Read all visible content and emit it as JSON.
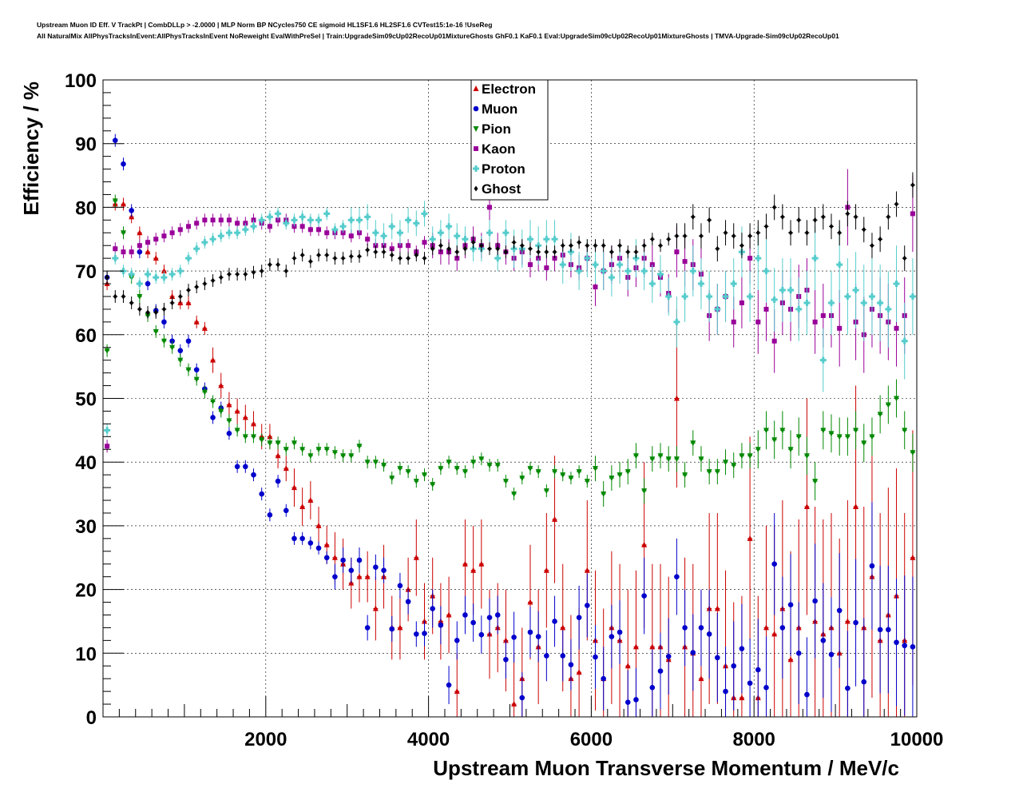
{
  "header": {
    "line1": "Upstream Muon ID Eff. V TrackPt | CombDLLp > -2.0000 | MLP Norm BP NCycles750 CE sigmoid HL1SF1.6 HL2SF1.6 CVTest15:1e-16 !UseReg",
    "line2": "All NaturalMix AllPhysTracksInEvent:AllPhysTracksInEvent NoReweight EvalWithPreSel | Train:UpgradeSim09cUp02RecoUp01MixtureGhosts GhF0.1 KaF0.1 Eval:UpgradeSim09cUp02RecoUp01MixtureGhosts | TMVA-Upgrade-Sim09cUp02RecoUp01"
  },
  "chart_data": {
    "type": "scatter",
    "xlabel": "Upstream Muon Transverse Momentum / MeV/c",
    "ylabel": "Efficiency / %",
    "xlim": [
      0,
      10000
    ],
    "ylim": [
      0,
      100
    ],
    "xticks": [
      2000,
      4000,
      6000,
      8000,
      10000
    ],
    "yticks": [
      0,
      10,
      20,
      30,
      40,
      50,
      60,
      70,
      80,
      90,
      100
    ],
    "grid": true,
    "legend_position": "top-center",
    "x": [
      50,
      150,
      250,
      350,
      450,
      550,
      650,
      750,
      850,
      950,
      1050,
      1150,
      1250,
      1350,
      1450,
      1550,
      1650,
      1750,
      1850,
      1950,
      2050,
      2150,
      2250,
      2350,
      2450,
      2550,
      2650,
      2750,
      2850,
      2950,
      3050,
      3150,
      3250,
      3350,
      3450,
      3550,
      3650,
      3750,
      3850,
      3950,
      4050,
      4150,
      4250,
      4350,
      4450,
      4550,
      4650,
      4750,
      4850,
      4950,
      5050,
      5150,
      5250,
      5350,
      5450,
      5550,
      5650,
      5750,
      5850,
      5950,
      6050,
      6150,
      6250,
      6350,
      6450,
      6550,
      6650,
      6750,
      6850,
      6950,
      7050,
      7150,
      7250,
      7350,
      7450,
      7550,
      7650,
      7750,
      7850,
      7950,
      8050,
      8150,
      8250,
      8350,
      8450,
      8550,
      8650,
      8750,
      8850,
      8950,
      9050,
      9150,
      9250,
      9350,
      9450,
      9550,
      9650,
      9750,
      9850,
      9950
    ],
    "series": [
      {
        "name": "Electron",
        "color": "#cc0000",
        "marker": "triangle-up",
        "values": [
          68,
          80.5,
          80.5,
          78.5,
          76,
          73,
          72,
          70,
          66,
          65,
          65,
          62,
          61,
          56,
          52,
          49,
          48,
          47,
          46,
          44,
          44,
          41,
          39,
          36,
          33,
          34,
          30,
          27,
          25,
          24,
          21,
          22,
          22,
          17,
          22,
          14,
          14,
          20,
          25,
          15,
          19,
          15,
          16,
          4,
          24,
          23,
          24,
          13,
          14,
          12,
          2,
          6,
          18,
          11,
          23,
          31,
          14,
          6,
          7,
          23,
          12,
          6,
          14,
          12,
          8,
          11,
          27,
          11,
          11,
          9,
          50,
          11,
          10,
          6,
          17,
          17,
          8,
          3,
          3,
          28,
          3,
          14,
          13,
          17,
          9,
          14,
          33,
          15,
          13,
          14,
          10,
          15,
          33,
          14,
          22,
          12,
          16,
          19,
          12,
          25
        ],
        "err": [
          1,
          1,
          1,
          1,
          1,
          1,
          1,
          1,
          1,
          1,
          1,
          1,
          1,
          2,
          2,
          2,
          2,
          2,
          2,
          2,
          2,
          2,
          2,
          3,
          3,
          3,
          3,
          3,
          4,
          4,
          4,
          4,
          4,
          5,
          5,
          5,
          5,
          5,
          6,
          6,
          6,
          6,
          6,
          6,
          7,
          7,
          7,
          7,
          7,
          8,
          8,
          8,
          9,
          9,
          9,
          10,
          10,
          10,
          10,
          11,
          11,
          11,
          12,
          12,
          12,
          12,
          13,
          13,
          13,
          13,
          14,
          14,
          14,
          14,
          15,
          15,
          15,
          15,
          16,
          16,
          16,
          16,
          17,
          17,
          17,
          17,
          17,
          18,
          18,
          18,
          18,
          19,
          19,
          19,
          19,
          20,
          20,
          20,
          20,
          20
        ]
      },
      {
        "name": "Muon",
        "color": "#0000cc",
        "marker": "circle",
        "values": [
          69,
          90.5,
          86.8,
          79.5,
          73,
          68,
          63.8,
          62,
          59,
          57.5,
          59,
          54.5,
          51.5,
          47,
          48.5,
          44.5,
          39.3,
          39.3,
          38,
          35,
          31.7,
          37,
          32.4,
          28,
          28,
          27.3,
          26.5,
          25,
          22,
          24.6,
          23,
          24.6,
          14,
          23.5,
          23,
          13.8,
          20.6,
          18.1,
          13,
          13.1,
          17,
          14.4,
          5,
          12,
          16,
          14.8,
          12.9,
          15.6,
          16,
          9,
          12.5,
          3,
          13.3,
          12.6,
          9.6,
          15,
          9.6,
          8.2,
          15.6,
          17.5,
          9.4,
          6,
          12.6,
          13.3,
          2.3,
          2.7,
          19,
          4.6,
          7.2,
          9.5,
          22,
          14,
          10.1,
          14,
          13,
          9.3,
          4,
          8,
          10.7,
          5.3,
          7.4,
          4.6,
          24,
          14,
          17.6,
          10,
          3.5,
          18.2,
          12,
          9.8,
          16.7,
          4.5,
          14.8,
          5.5,
          23.7,
          13.7,
          13.7,
          11.7,
          11.2,
          11
        ],
        "err": [
          1,
          1,
          1,
          1,
          1,
          1,
          1,
          1,
          1,
          1,
          1,
          1,
          1,
          1,
          1,
          1,
          1,
          1,
          1,
          1,
          1,
          1,
          1,
          1,
          1,
          1,
          1,
          1,
          2,
          2,
          2,
          2,
          2,
          2,
          2,
          2,
          2,
          2,
          2,
          2,
          3,
          3,
          3,
          3,
          3,
          3,
          3,
          3,
          3,
          3,
          4,
          4,
          4,
          4,
          4,
          4,
          4,
          4,
          5,
          5,
          5,
          5,
          5,
          5,
          5,
          5,
          6,
          6,
          6,
          6,
          6,
          6,
          6,
          6,
          7,
          7,
          7,
          7,
          7,
          7,
          8,
          8,
          8,
          8,
          8,
          8,
          9,
          9,
          9,
          9,
          9,
          9,
          10,
          10,
          10,
          10,
          10,
          10,
          11,
          11
        ]
      },
      {
        "name": "Pion",
        "color": "#008800",
        "marker": "triangle-down",
        "values": [
          57.5,
          81,
          76,
          69,
          66,
          63,
          60.5,
          59,
          58,
          56,
          54.5,
          53,
          51,
          49.5,
          48,
          46.5,
          45,
          44,
          44,
          43.5,
          43,
          43,
          42,
          43,
          42,
          41,
          42,
          42,
          41.5,
          41,
          41,
          42.5,
          40,
          40,
          39.5,
          37.5,
          39,
          38.5,
          37,
          38,
          36.5,
          39,
          40,
          39,
          38.5,
          40,
          40.5,
          39.5,
          39.5,
          37,
          35,
          37.5,
          39,
          38.5,
          35.5,
          38.5,
          38,
          37.5,
          38.5,
          37,
          39,
          35,
          37.5,
          38,
          38.5,
          41,
          35.5,
          40.5,
          41,
          40.5,
          40.5,
          38,
          43,
          40.5,
          38.5,
          38.5,
          40,
          39.5,
          41,
          41,
          42,
          45,
          43.5,
          45,
          42,
          44,
          41,
          37,
          45,
          44.5,
          44,
          44,
          45,
          43,
          44,
          47.5,
          49,
          50,
          45,
          41.5
        ],
        "err": [
          1,
          1,
          1,
          1,
          1,
          1,
          1,
          1,
          1,
          1,
          1,
          1,
          1,
          1,
          1,
          1,
          1,
          1,
          1,
          1,
          1,
          1,
          1,
          1,
          1,
          1,
          1,
          1,
          1,
          1,
          1,
          1,
          1,
          1,
          1,
          1,
          1,
          1,
          1,
          1,
          1,
          1,
          1,
          1,
          1,
          1,
          1,
          1,
          1,
          1,
          1,
          1,
          1,
          1,
          1,
          1,
          1,
          1,
          1,
          1,
          2,
          2,
          2,
          2,
          2,
          2,
          2,
          2,
          2,
          2,
          2,
          2,
          2,
          2,
          2,
          2,
          2,
          2,
          2,
          2,
          3,
          3,
          3,
          3,
          3,
          3,
          3,
          3,
          3,
          3,
          3,
          3,
          3,
          3,
          3,
          3,
          3,
          3,
          3,
          3
        ]
      },
      {
        "name": "Kaon",
        "color": "#990099",
        "marker": "square",
        "values": [
          42.5,
          73.5,
          73,
          73,
          74,
          74.5,
          75,
          75.5,
          76,
          76.5,
          77,
          77.5,
          78,
          78,
          78,
          78,
          77.5,
          77.5,
          78,
          77.5,
          77,
          78,
          78,
          77,
          77,
          76.5,
          76.5,
          76,
          76,
          76,
          75.5,
          76,
          75,
          74,
          74,
          73.5,
          74,
          74,
          73,
          74.5,
          74,
          73,
          73,
          72,
          74,
          75,
          74,
          80,
          74,
          73,
          72,
          73,
          71,
          72,
          70.5,
          72,
          72.5,
          71,
          70.5,
          72,
          67.5,
          70,
          71,
          72,
          69,
          70.5,
          72,
          71,
          69,
          66.5,
          73,
          71.5,
          71,
          69.5,
          63,
          64,
          66,
          62,
          65,
          72,
          62,
          64,
          59,
          65,
          64,
          66,
          67,
          62,
          63,
          63,
          61,
          80,
          62,
          60,
          64,
          63,
          62,
          61,
          63,
          79
        ],
        "err": [
          1,
          1,
          1,
          1,
          1,
          1,
          1,
          1,
          1,
          1,
          1,
          1,
          1,
          1,
          1,
          1,
          1,
          1,
          1,
          1,
          1,
          1,
          1,
          1,
          1,
          1,
          1,
          1,
          1,
          1,
          1,
          1,
          1,
          1,
          1,
          1,
          1,
          1,
          1,
          1,
          2,
          2,
          2,
          2,
          2,
          2,
          2,
          2,
          2,
          2,
          2,
          2,
          2,
          2,
          2,
          2,
          2,
          2,
          2,
          2,
          3,
          3,
          3,
          3,
          3,
          3,
          3,
          3,
          3,
          3,
          4,
          4,
          4,
          4,
          4,
          4,
          4,
          4,
          4,
          4,
          5,
          5,
          5,
          5,
          5,
          5,
          5,
          5,
          5,
          5,
          6,
          6,
          6,
          6,
          6,
          6,
          6,
          6,
          6,
          6
        ]
      },
      {
        "name": "Proton",
        "color": "#55cccc",
        "marker": "cross",
        "values": [
          45,
          72,
          70,
          69.5,
          68,
          69.5,
          69,
          69,
          69.5,
          70,
          72,
          73.5,
          74.5,
          75,
          75.5,
          76,
          76,
          76.5,
          77,
          78,
          78.5,
          79,
          77.5,
          78,
          78.5,
          78,
          78,
          79,
          76.5,
          77,
          78,
          78,
          78.5,
          76,
          75.5,
          77,
          76,
          78,
          77.5,
          79,
          75,
          76,
          77,
          75.5,
          75,
          73.5,
          73.5,
          76,
          72,
          76,
          73.5,
          73.5,
          75,
          74,
          75,
          75,
          71,
          73,
          70,
          72,
          71,
          70,
          69,
          71,
          70,
          72,
          70,
          68,
          69.5,
          66,
          62,
          66,
          70,
          68,
          66,
          64,
          66,
          68,
          73,
          66,
          72,
          70,
          65.5,
          67,
          67,
          64,
          65,
          72,
          56,
          65,
          71,
          66,
          67,
          65,
          66,
          65,
          64,
          68,
          59,
          66
        ],
        "err": [
          1,
          1,
          1,
          1,
          1,
          1,
          1,
          1,
          1,
          1,
          1,
          1,
          1,
          1,
          1,
          1,
          1,
          1,
          1,
          1,
          1,
          1,
          1,
          1,
          1,
          1,
          1,
          1,
          1,
          1,
          2,
          2,
          2,
          2,
          2,
          2,
          2,
          2,
          2,
          2,
          2,
          2,
          2,
          2,
          2,
          2,
          2,
          2,
          2,
          2,
          3,
          3,
          3,
          3,
          3,
          3,
          3,
          3,
          3,
          3,
          3,
          3,
          3,
          3,
          3,
          3,
          3,
          3,
          3,
          3,
          4,
          4,
          4,
          4,
          4,
          4,
          4,
          4,
          4,
          4,
          5,
          5,
          5,
          5,
          5,
          5,
          5,
          5,
          5,
          5,
          6,
          6,
          6,
          6,
          6,
          6,
          6,
          6,
          6,
          6
        ]
      },
      {
        "name": "Ghost",
        "color": "#000000",
        "marker": "diamond",
        "values": [
          69,
          66,
          66,
          65,
          64,
          63.5,
          63.5,
          64,
          65,
          66,
          67,
          67.5,
          68,
          68.5,
          69,
          69.5,
          69.5,
          69.5,
          69.8,
          70,
          71,
          71,
          70,
          72,
          72.5,
          71.5,
          72.5,
          72.5,
          72,
          72,
          72.3,
          72.3,
          73.3,
          73,
          73,
          72.5,
          72,
          72,
          72.5,
          72,
          73.5,
          74,
          73.5,
          73,
          73.5,
          74.5,
          74,
          73.5,
          73.5,
          73,
          74.5,
          74,
          73.5,
          73,
          73,
          73,
          74,
          74,
          74.5,
          74,
          74,
          74,
          73,
          74,
          73,
          73,
          74,
          75,
          74,
          75,
          75.5,
          75.5,
          78.5,
          75.5,
          78,
          73.5,
          76,
          75.5,
          74,
          75.5,
          76,
          77,
          80,
          78.5,
          76,
          78,
          76,
          78,
          78.5,
          77,
          76,
          79,
          78.5,
          76.5,
          74,
          75,
          78.5,
          80.5,
          72,
          83.5
        ],
        "err": [
          1,
          1,
          1,
          1,
          1,
          1,
          1,
          1,
          1,
          1,
          1,
          1,
          1,
          1,
          1,
          1,
          1,
          1,
          1,
          1,
          1,
          1,
          1,
          1,
          1,
          1,
          1,
          1,
          1,
          1,
          1,
          1,
          1,
          1,
          1,
          1,
          1,
          1,
          1,
          1,
          1,
          1,
          1,
          1,
          1,
          1,
          1,
          1,
          1,
          1,
          1,
          1,
          1,
          1,
          1,
          1,
          1,
          1,
          1,
          1,
          1,
          1,
          1,
          1,
          1,
          1,
          1,
          1,
          1,
          1,
          2,
          2,
          2,
          2,
          2,
          2,
          2,
          2,
          2,
          2,
          2,
          2,
          2,
          2,
          2,
          2,
          2,
          2,
          2,
          2,
          2,
          2,
          2,
          2,
          2,
          2,
          2,
          2,
          2,
          2
        ]
      }
    ]
  }
}
